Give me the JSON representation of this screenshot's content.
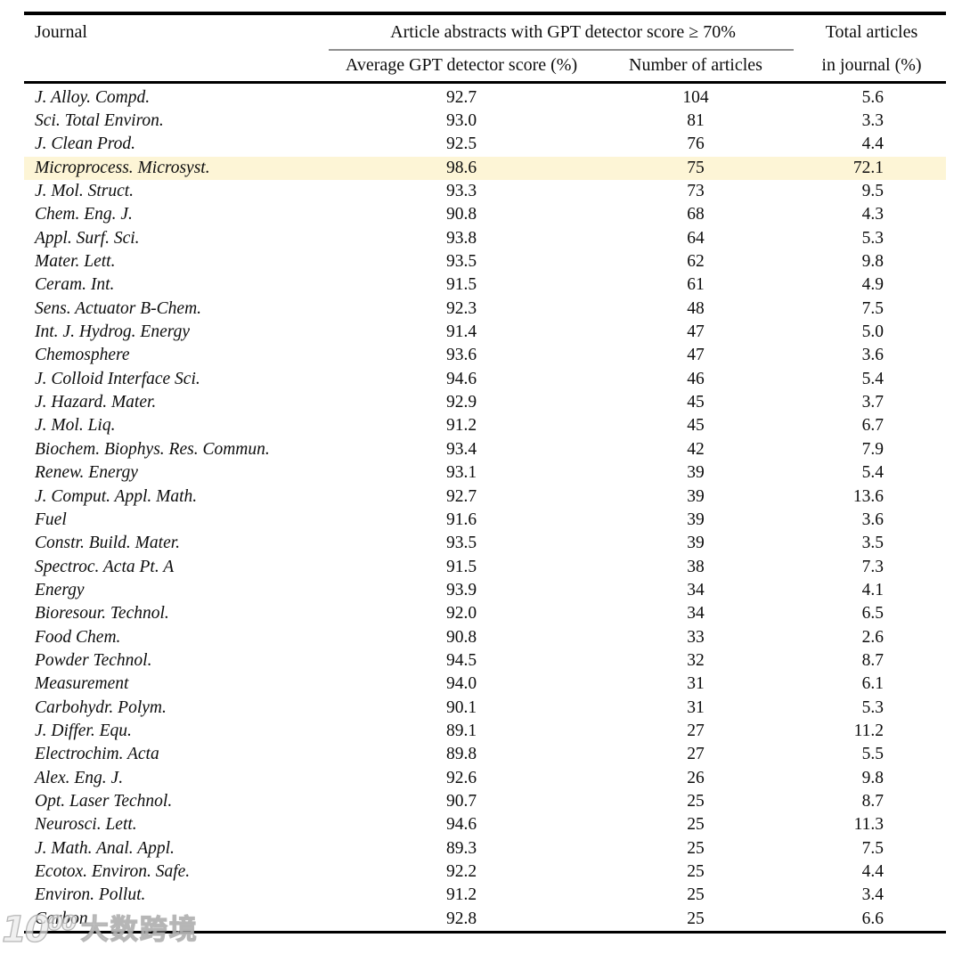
{
  "table": {
    "header": {
      "journal": "Journal",
      "group": "Article abstracts with GPT detector score ≥ 70%",
      "sub_score": "Average GPT detector score (%)",
      "sub_count": "Number of articles",
      "total_line1": "Total articles",
      "total_line2": "in journal (%)"
    },
    "rule_color": "#000000",
    "cmidrule_color": "#8f8f8f",
    "highlight_color": "#fdf5d6",
    "rows": [
      {
        "journal": "J. Alloy. Compd.",
        "score": "92.7",
        "articles": "104",
        "total": "5.6",
        "highlight": false
      },
      {
        "journal": "Sci. Total Environ.",
        "score": "93.0",
        "articles": "81",
        "total": "3.3",
        "highlight": false
      },
      {
        "journal": "J. Clean Prod.",
        "score": "92.5",
        "articles": "76",
        "total": "4.4",
        "highlight": false
      },
      {
        "journal": "Microprocess. Microsyst.",
        "score": "98.6",
        "articles": "75",
        "total": "72.1",
        "highlight": true
      },
      {
        "journal": "J. Mol. Struct.",
        "score": "93.3",
        "articles": "73",
        "total": "9.5",
        "highlight": false
      },
      {
        "journal": "Chem. Eng. J.",
        "score": "90.8",
        "articles": "68",
        "total": "4.3",
        "highlight": false
      },
      {
        "journal": "Appl. Surf. Sci.",
        "score": "93.8",
        "articles": "64",
        "total": "5.3",
        "highlight": false
      },
      {
        "journal": "Mater. Lett.",
        "score": "93.5",
        "articles": "62",
        "total": "9.8",
        "highlight": false
      },
      {
        "journal": "Ceram. Int.",
        "score": "91.5",
        "articles": "61",
        "total": "4.9",
        "highlight": false
      },
      {
        "journal": "Sens. Actuator B-Chem.",
        "score": "92.3",
        "articles": "48",
        "total": "7.5",
        "highlight": false
      },
      {
        "journal": "Int. J. Hydrog. Energy",
        "score": "91.4",
        "articles": "47",
        "total": "5.0",
        "highlight": false
      },
      {
        "journal": "Chemosphere",
        "score": "93.6",
        "articles": "47",
        "total": "3.6",
        "highlight": false
      },
      {
        "journal": "J. Colloid Interface Sci.",
        "score": "94.6",
        "articles": "46",
        "total": "5.4",
        "highlight": false
      },
      {
        "journal": "J. Hazard. Mater.",
        "score": "92.9",
        "articles": "45",
        "total": "3.7",
        "highlight": false
      },
      {
        "journal": "J. Mol. Liq.",
        "score": "91.2",
        "articles": "45",
        "total": "6.7",
        "highlight": false
      },
      {
        "journal": "Biochem. Biophys. Res. Commun.",
        "score": "93.4",
        "articles": "42",
        "total": "7.9",
        "highlight": false
      },
      {
        "journal": "Renew. Energy",
        "score": "93.1",
        "articles": "39",
        "total": "5.4",
        "highlight": false
      },
      {
        "journal": "J. Comput. Appl. Math.",
        "score": "92.7",
        "articles": "39",
        "total": "13.6",
        "highlight": false
      },
      {
        "journal": "Fuel",
        "score": "91.6",
        "articles": "39",
        "total": "3.6",
        "highlight": false
      },
      {
        "journal": "Constr. Build. Mater.",
        "score": "93.5",
        "articles": "39",
        "total": "3.5",
        "highlight": false
      },
      {
        "journal": "Spectroc. Acta Pt. A",
        "score": "91.5",
        "articles": "38",
        "total": "7.3",
        "highlight": false
      },
      {
        "journal": "Energy",
        "score": "93.9",
        "articles": "34",
        "total": "4.1",
        "highlight": false
      },
      {
        "journal": "Bioresour. Technol.",
        "score": "92.0",
        "articles": "34",
        "total": "6.5",
        "highlight": false
      },
      {
        "journal": "Food Chem.",
        "score": "90.8",
        "articles": "33",
        "total": "2.6",
        "highlight": false
      },
      {
        "journal": "Powder Technol.",
        "score": "94.5",
        "articles": "32",
        "total": "8.7",
        "highlight": false
      },
      {
        "journal": "Measurement",
        "score": "94.0",
        "articles": "31",
        "total": "6.1",
        "highlight": false
      },
      {
        "journal": "Carbohydr. Polym.",
        "score": "90.1",
        "articles": "31",
        "total": "5.3",
        "highlight": false
      },
      {
        "journal": "J. Differ. Equ.",
        "score": "89.1",
        "articles": "27",
        "total": "11.2",
        "highlight": false
      },
      {
        "journal": "Electrochim. Acta",
        "score": "89.8",
        "articles": "27",
        "total": "5.5",
        "highlight": false
      },
      {
        "journal": "Alex. Eng. J.",
        "score": "92.6",
        "articles": "26",
        "total": "9.8",
        "highlight": false
      },
      {
        "journal": "Opt. Laser Technol.",
        "score": "90.7",
        "articles": "25",
        "total": "8.7",
        "highlight": false
      },
      {
        "journal": "Neurosci. Lett.",
        "score": "94.6",
        "articles": "25",
        "total": "11.3",
        "highlight": false
      },
      {
        "journal": "J. Math. Anal. Appl.",
        "score": "89.3",
        "articles": "25",
        "total": "7.5",
        "highlight": false
      },
      {
        "journal": "Ecotox. Environ. Safe.",
        "score": "92.2",
        "articles": "25",
        "total": "4.4",
        "highlight": false
      },
      {
        "journal": "Environ. Pollut.",
        "score": "91.2",
        "articles": "25",
        "total": "3.4",
        "highlight": false
      },
      {
        "journal": "Carbon",
        "score": "92.8",
        "articles": "25",
        "total": "6.6",
        "highlight": false
      }
    ]
  },
  "watermark": {
    "logo": "10⁰⁰",
    "text": "大数跨境"
  }
}
